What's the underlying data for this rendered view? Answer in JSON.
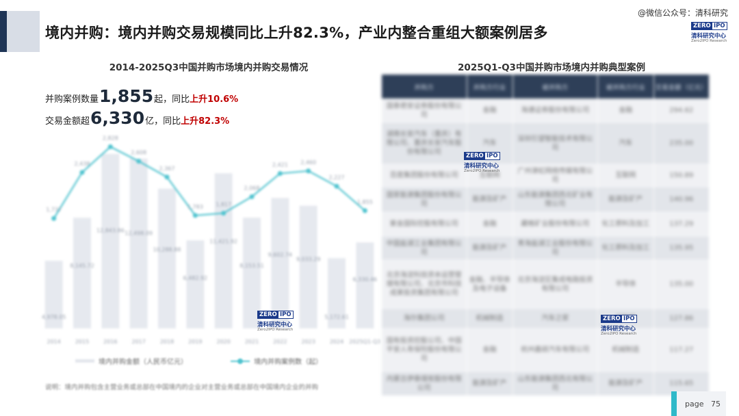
{
  "header": {
    "title": "境内并购：境内并购交易规模同比上升82.3%，产业内整合重组大额案例居多",
    "wechat": "@微信公众号：清科研究"
  },
  "logo": {
    "box1": "ZERO",
    "box2": "IPO",
    "cn": "清科研究中心",
    "en": "Zero2IPO Research"
  },
  "left": {
    "title": "2014-2025Q3中国并购市场境内并购交易情况",
    "stat1": {
      "pre": "并购案例数量",
      "num": "1,855",
      "mid": "起，同比",
      "change": "上升10.6%"
    },
    "stat2": {
      "pre": "交易金额超",
      "num": "6,330",
      "mid": "亿，同比",
      "change": "上升82.3%"
    },
    "legend": {
      "bar": "境内并购金额（人民币亿元）",
      "line": "境内并购案例数（起）"
    },
    "note": "说明：境内并购包含主营业务或总部在中国境内的企业对主营业务或总部在中国境内企业的并购"
  },
  "chart_data": {
    "type": "bar",
    "categories": [
      "2014",
      "2015",
      "2016",
      "2017",
      "2018",
      "2019",
      "2020",
      "2021",
      "2022",
      "2023",
      "2024",
      "2025Q1-Q3"
    ],
    "series": [
      {
        "name": "境内并购金额（人民币亿元）",
        "type": "bar",
        "values": [
          4978.05,
          8145.72,
          12843.86,
          12498.09,
          10288.88,
          6482.92,
          11421.92,
          8153.51,
          9602.74,
          9033.29,
          5172.61,
          6330.46
        ],
        "labels": [
          "4,978.05",
          "8,145.72",
          "12,843.86",
          "12,498.09",
          "10,288.88",
          "6,482.92",
          "11,421.92",
          "8,153.51",
          "9,602.74",
          "9,033.29",
          "5,172.61",
          "6,330.46"
        ]
      },
      {
        "name": "境内并购案例数（起）",
        "type": "line",
        "values": [
          1737,
          2438,
          2828,
          2608,
          2367,
          1783,
          1817,
          2068,
          2421,
          2460,
          2227,
          1855
        ],
        "labels": [
          "1,737",
          "2,438",
          "2,828",
          "2,608",
          "2,367",
          "1,783",
          "1,817",
          "2,068",
          "2,421",
          "2,460",
          "2,227",
          "1,855"
        ]
      }
    ],
    "colors": {
      "bar": "#e6e9ef",
      "line": "#4fc3cf",
      "text": "#9aa1ad"
    }
  },
  "right": {
    "title": "2025Q1-Q3中国并购市场境内并购典型案例",
    "headers": [
      "并购方",
      "并购方行业",
      "被并购方",
      "被并购方行业",
      "交易金额（亿元）"
    ],
    "rows": [
      [
        "国泰君安证券股份有限公司",
        "金融",
        "海通证券股份有限公司",
        "金融",
        "294.62"
      ],
      [
        "湖南长安汽车（重庆）有限公司、重庆长安汽车股份有限公司",
        "汽车",
        "深圳引望智能技术有限公司",
        "汽车",
        "235.00"
      ],
      [
        "百度集团股份有限公司",
        "互联网",
        "广州津虹网络传媒有限公司",
        "互联网",
        "150.89"
      ],
      [
        "国家能源集团股份有限公司",
        "能源及矿产",
        "山东能源集团西北矿业有限公司",
        "能源及矿产",
        "140.96"
      ],
      [
        "紫金国际控股有限公司",
        "金融",
        "藏格矿业股份有限公司",
        "化工原料及加工",
        "137.29"
      ],
      [
        "中国盐湖工业集团有限公司",
        "能源及矿产",
        "青海盐湖工业股份有限公司",
        "化工原料及加工",
        "135.95"
      ],
      [
        "北京海淀科技资本运营管理有限公司、北京市科技成果投资集团有限公司",
        "金融、半导体及电子设备",
        "北京海淀区集成电路投资有限公司",
        "半导体",
        "135.00"
      ],
      [
        "海尔集团公司",
        "机械制造",
        "汽车之家",
        "互联网",
        "127.86"
      ],
      [
        "国有投资控股公司、中国平安人寿保险股份有限公司",
        "金融",
        "杭州鑫硕汽车有限公司",
        "机械制造",
        "117.27"
      ],
      [
        "内蒙古伊泰煤炭股份有限公司",
        "能源及矿产",
        "山东能源集团西北有限公司",
        "能源及矿产",
        "115.65"
      ]
    ]
  },
  "footer": {
    "page_label": "page",
    "page_num": "75"
  }
}
